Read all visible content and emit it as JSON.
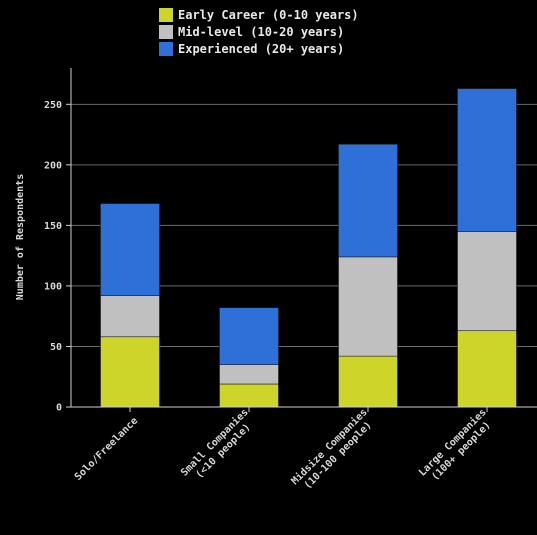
{
  "chart_data": {
    "type": "bar",
    "stacked": true,
    "categories": [
      [
        "Solo/Freelance"
      ],
      [
        "Small Companies",
        "(<10 people)"
      ],
      [
        "Midsize Companies",
        "(10-100 people)"
      ],
      [
        "Large Companies",
        "(100+ people)"
      ]
    ],
    "series": [
      {
        "name": "Early Career (0-10 years)",
        "color": "#cdd52a",
        "values": [
          58,
          19,
          42,
          63
        ]
      },
      {
        "name": "Mid-level (10-20 years)",
        "color": "#c0c0c0",
        "values": [
          34,
          16,
          82,
          82
        ]
      },
      {
        "name": "Experienced (20+ years)",
        "color": "#2e6fd8",
        "values": [
          76,
          47,
          93,
          118
        ]
      }
    ],
    "xlabel": "",
    "ylabel": "Number of Respondents",
    "ylim": [
      0,
      280
    ],
    "yticks": [
      "0",
      "50",
      "100",
      "150",
      "200",
      "250"
    ],
    "grid": "horizontal",
    "legend_position": "top-center"
  }
}
